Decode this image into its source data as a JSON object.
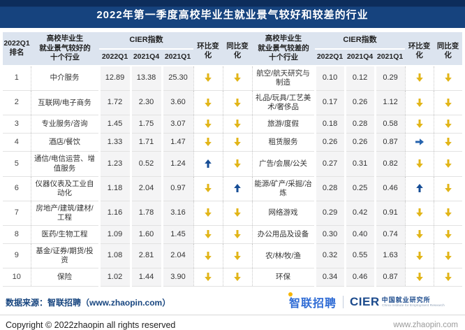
{
  "title": "2022年第一季度高校毕业生就业景气较好和较差的行业",
  "colors": {
    "title_bg": "#16437E",
    "header_bg": "#DCE4EF",
    "value_bg": "#F4F4F5",
    "arrow_down": "#E2B518",
    "arrow_up": "#174E96",
    "arrow_right": "#2563AE",
    "footer_navy": "#17457F",
    "zhaopin_blue": "#2E6BD5",
    "zhaopin_dot_yellow": "#F7B500"
  },
  "chart_data": {
    "type": "table",
    "title": "2022年第一季度高校毕业生就业景气较好和较差的行业",
    "header": {
      "rank": "2022Q1\n排名",
      "good_group": "高校毕业生\n就业景气较好的\n十个行业",
      "bad_group": "高校毕业生\n就业景气较差的\n十个行业",
      "cier": "CIER指数",
      "quarters": [
        "2022Q1",
        "2021Q4",
        "2021Q1"
      ],
      "qoq": "环比变化",
      "yoy": "同比变化"
    },
    "arrow_legend": {
      "down": "下降",
      "up": "上升",
      "right": "持平"
    },
    "rows": [
      {
        "rank": "1",
        "good": {
          "industry": "中介服务",
          "values": [
            "12.89",
            "13.38",
            "25.30"
          ],
          "qoq": "down",
          "yoy": "down"
        },
        "bad": {
          "industry": "航空/航天研究与制造",
          "values": [
            "0.10",
            "0.12",
            "0.29"
          ],
          "qoq": "down",
          "yoy": "down"
        }
      },
      {
        "rank": "2",
        "good": {
          "industry": "互联网/电子商务",
          "values": [
            "1.72",
            "2.30",
            "3.60"
          ],
          "qoq": "down",
          "yoy": "down"
        },
        "bad": {
          "industry": "礼品/玩具/工艺美术/奢侈品",
          "values": [
            "0.17",
            "0.26",
            "1.12"
          ],
          "qoq": "down",
          "yoy": "down"
        }
      },
      {
        "rank": "3",
        "good": {
          "industry": "专业服务/咨询",
          "values": [
            "1.45",
            "1.75",
            "3.07"
          ],
          "qoq": "down",
          "yoy": "down"
        },
        "bad": {
          "industry": "旅游/度假",
          "values": [
            "0.18",
            "0.28",
            "0.58"
          ],
          "qoq": "down",
          "yoy": "down"
        }
      },
      {
        "rank": "4",
        "good": {
          "industry": "酒店/餐饮",
          "values": [
            "1.33",
            "1.71",
            "1.47"
          ],
          "qoq": "down",
          "yoy": "down"
        },
        "bad": {
          "industry": "租赁服务",
          "values": [
            "0.26",
            "0.26",
            "0.87"
          ],
          "qoq": "right",
          "yoy": "down"
        }
      },
      {
        "rank": "5",
        "good": {
          "industry": "通信/电信运营、增值服务",
          "values": [
            "1.23",
            "0.52",
            "1.24"
          ],
          "qoq": "up",
          "yoy": "down"
        },
        "bad": {
          "industry": "广告/会展/公关",
          "values": [
            "0.27",
            "0.31",
            "0.82"
          ],
          "qoq": "down",
          "yoy": "down"
        }
      },
      {
        "rank": "6",
        "good": {
          "industry": "仪器仪表及工业自动化",
          "values": [
            "1.18",
            "2.04",
            "0.97"
          ],
          "qoq": "down",
          "yoy": "up"
        },
        "bad": {
          "industry": "能源/矿产/采掘/冶炼",
          "values": [
            "0.28",
            "0.25",
            "0.46"
          ],
          "qoq": "up",
          "yoy": "down"
        }
      },
      {
        "rank": "7",
        "good": {
          "industry": "房地产/建筑/建材/工程",
          "values": [
            "1.16",
            "1.78",
            "3.16"
          ],
          "qoq": "down",
          "yoy": "down"
        },
        "bad": {
          "industry": "网络游戏",
          "values": [
            "0.29",
            "0.42",
            "0.91"
          ],
          "qoq": "down",
          "yoy": "down"
        }
      },
      {
        "rank": "8",
        "good": {
          "industry": "医药/生物工程",
          "values": [
            "1.09",
            "1.60",
            "1.45"
          ],
          "qoq": "down",
          "yoy": "down"
        },
        "bad": {
          "industry": "办公用品及设备",
          "values": [
            "0.30",
            "0.40",
            "0.74"
          ],
          "qoq": "down",
          "yoy": "down"
        }
      },
      {
        "rank": "9",
        "good": {
          "industry": "基金/证券/期货/投资",
          "values": [
            "1.08",
            "2.81",
            "2.04"
          ],
          "qoq": "down",
          "yoy": "down"
        },
        "bad": {
          "industry": "农/林/牧/渔",
          "values": [
            "0.32",
            "0.55",
            "1.63"
          ],
          "qoq": "down",
          "yoy": "down"
        }
      },
      {
        "rank": "10",
        "good": {
          "industry": "保险",
          "values": [
            "1.02",
            "1.44",
            "3.90"
          ],
          "qoq": "down",
          "yoy": "down"
        },
        "bad": {
          "industry": "环保",
          "values": [
            "0.34",
            "0.46",
            "0.87"
          ],
          "qoq": "down",
          "yoy": "down"
        }
      }
    ]
  },
  "footer": {
    "data_source": "数据来源：智联招聘（www.zhaopin.com）",
    "copyright": "Copyright © 2022zhaopin all rights reserved",
    "website": "www.zhaopin.com",
    "zhaopin_logo": "智联招聘",
    "cier_logo": "CIER",
    "cier_cn": "中国就业研究所",
    "cier_en": "China Institute for Employment Research"
  }
}
